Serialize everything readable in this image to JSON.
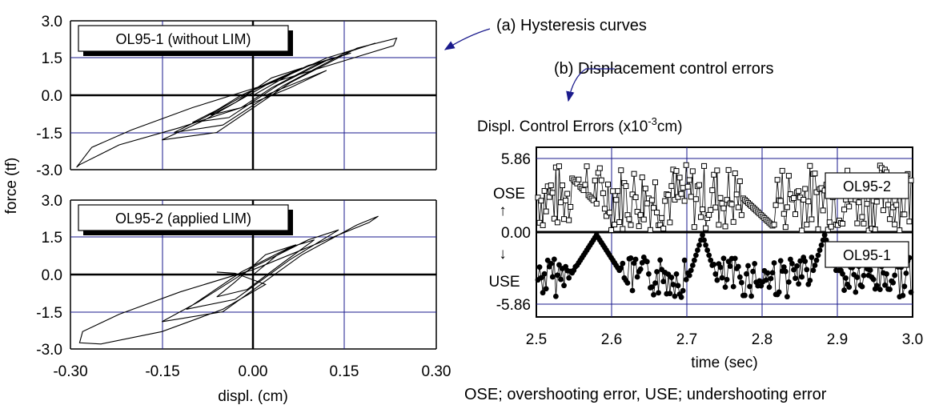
{
  "annotations": {
    "a": "(a) Hysteresis curves",
    "b": "(b) Displacement control errors",
    "footnote": "OSE; overshooting error, USE; undershooting error"
  },
  "chart_data": [
    {
      "id": "hysteresis-top",
      "type": "line",
      "title": "OL95-1 (without LIM)",
      "xlabel": "displ. (cm)",
      "ylabel": "force (tf)",
      "xlim": [
        -0.3,
        0.3
      ],
      "ylim": [
        -3.0,
        3.0
      ],
      "xticks": [
        "-0.30",
        "-0.15",
        "0.00",
        "0.15",
        "0.30"
      ],
      "yticks": [
        "3.0",
        "1.5",
        "0.0",
        "-1.5",
        "-3.0"
      ],
      "grid": true,
      "series": [
        {
          "x": [
            0,
            0.05,
            0.08,
            0.03,
            -0.03,
            -0.07,
            -0.02,
            0.03,
            0.1,
            0.13,
            0.07,
            -0.02,
            -0.06,
            -0.1,
            -0.04,
            0.04,
            0.12,
            0.16,
            0.09,
            0.0,
            -0.08,
            -0.13,
            -0.05,
            0.05,
            0.15,
            0.2,
            0.12,
            0.02,
            -0.08,
            -0.15,
            -0.06,
            0.06,
            0.17,
            0.235,
            0.23,
            0.15,
            0.03,
            -0.1,
            -0.2,
            -0.265,
            -0.29,
            -0.285,
            -0.22,
            -0.12,
            -0.02,
            0.06,
            0.12,
            0.08,
            0.02
          ],
          "y": [
            0,
            0.7,
            1.1,
            0.7,
            -0.3,
            -0.8,
            -0.5,
            0.3,
            1.2,
            1.5,
            1.0,
            0.0,
            -0.6,
            -1.1,
            -0.9,
            0.4,
            1.4,
            1.7,
            1.2,
            0.2,
            -0.9,
            -1.5,
            -1.2,
            0.4,
            1.7,
            2.1,
            1.5,
            0.4,
            -1.0,
            -1.8,
            -1.5,
            0.5,
            1.9,
            2.3,
            2.0,
            1.4,
            0.5,
            -0.5,
            -1.4,
            -2.1,
            -2.9,
            -2.8,
            -2.0,
            -1.3,
            -0.5,
            0.3,
            1.0,
            0.6,
            0.0
          ]
        }
      ]
    },
    {
      "id": "hysteresis-bottom",
      "type": "line",
      "title": "OL95-2 (applied LIM)",
      "xlabel": "displ. (cm)",
      "ylabel": "force (tf)",
      "xlim": [
        -0.3,
        0.3
      ],
      "ylim": [
        -3.0,
        3.0
      ],
      "xticks": [
        "-0.30",
        "-0.15",
        "0.00",
        "0.15",
        "0.30"
      ],
      "yticks": [
        "3.0",
        "1.5",
        "0.0",
        "-1.5",
        "-3.0"
      ],
      "grid": true,
      "series": [
        {
          "x": [
            0,
            0.04,
            0.07,
            0.02,
            -0.03,
            -0.06,
            -0.01,
            0.05,
            0.1,
            0.06,
            -0.02,
            -0.08,
            -0.11,
            -0.03,
            0.06,
            0.14,
            0.09,
            0.0,
            -0.09,
            -0.15,
            -0.05,
            0.08,
            0.17,
            0.205,
            0.19,
            0.1,
            0.0,
            -0.12,
            -0.22,
            -0.28,
            -0.285,
            -0.25,
            -0.15,
            -0.05,
            0.02,
            -0.03,
            -0.06
          ],
          "y": [
            0,
            0.8,
            1.2,
            0.8,
            -0.3,
            -0.9,
            -0.6,
            0.5,
            1.4,
            1.1,
            0.1,
            -0.9,
            -1.4,
            -1.0,
            0.6,
            1.8,
            1.4,
            0.3,
            -1.1,
            -1.9,
            -1.5,
            0.8,
            2.0,
            2.35,
            2.1,
            1.2,
            0.2,
            -0.7,
            -1.6,
            -2.3,
            -2.75,
            -2.8,
            -2.3,
            -1.4,
            -0.4,
            0.05,
            0.1
          ]
        }
      ]
    },
    {
      "id": "control-errors",
      "type": "scatter",
      "title": "Displ. Control Errors (x10⁻³cm)",
      "xlabel": "time (sec)",
      "xlim": [
        2.5,
        3.0
      ],
      "xticks": [
        "2.5",
        "2.6",
        "2.7",
        "2.8",
        "2.9",
        "3.0"
      ],
      "yticks": [
        "5.86",
        "0.00",
        "-5.86"
      ],
      "ylabels": {
        "ose": "OSE",
        "use": "USE"
      },
      "grid": true,
      "series": [
        {
          "name": "OL95-2",
          "marker": "open-square",
          "note": "overshooting error, plotted in upper half (0.00 to 5.86)"
        },
        {
          "name": "OL95-1",
          "marker": "filled-circle",
          "note": "undershooting error, plotted in lower half (0.00 to -5.86)"
        }
      ]
    }
  ]
}
